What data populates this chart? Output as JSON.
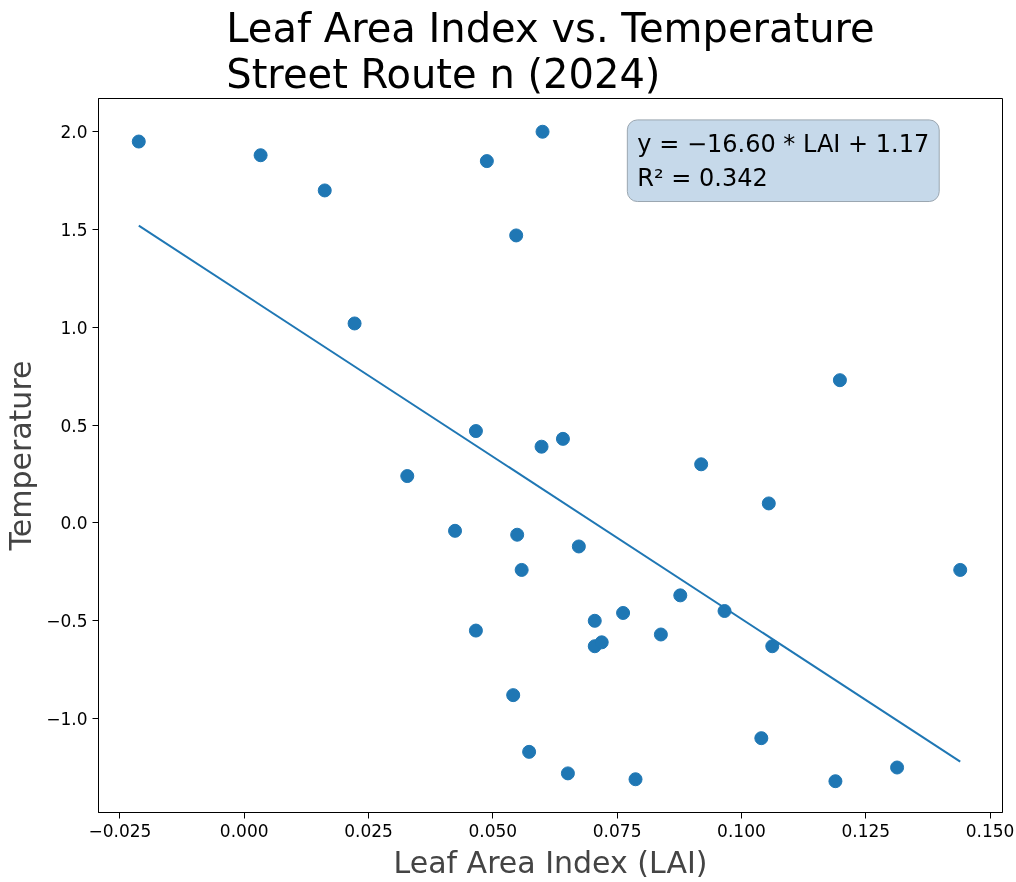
{
  "chart_data": {
    "type": "scatter",
    "title": "Leaf Area Index vs. Temperature\nStreet Route n (2024)",
    "xlabel": "Leaf Area Index (LAI)",
    "ylabel": "Temperature",
    "xlim": [
      -0.0293,
      0.1525
    ],
    "ylim": [
      -1.48,
      2.17
    ],
    "xticks": [
      {
        "value": -0.025,
        "label": "−0.025"
      },
      {
        "value": 0,
        "label": "0.000"
      },
      {
        "value": 0.025,
        "label": "0.025"
      },
      {
        "value": 0.05,
        "label": "0.050"
      },
      {
        "value": 0.075,
        "label": "0.075"
      },
      {
        "value": 0.1,
        "label": "0.100"
      },
      {
        "value": 0.125,
        "label": "0.125"
      },
      {
        "value": 0.15,
        "label": "0.150"
      }
    ],
    "yticks": [
      {
        "value": -1,
        "label": "−1.0"
      },
      {
        "value": -0.5,
        "label": "−0.5"
      },
      {
        "value": 0,
        "label": "0.0"
      },
      {
        "value": 0.5,
        "label": "0.5"
      },
      {
        "value": 1,
        "label": "1.0"
      },
      {
        "value": 1.5,
        "label": "1.5"
      },
      {
        "value": 2,
        "label": "2.0"
      }
    ],
    "grid": false,
    "annotations": [
      "y = −16.60 * LAI + 1.17",
      "R² = 0.342"
    ],
    "series": [
      {
        "color": "#1f77b4",
        "marker": "circle",
        "x": [
          -0.0212,
          0.0033,
          0.0162,
          0.06,
          0.0488,
          0.0547,
          0.0222,
          0.0466,
          0.0598,
          0.0641,
          0.0328,
          0.0424,
          0.0549,
          0.0673,
          0.0558,
          0.0466,
          0.0705,
          0.0762,
          0.0705,
          0.0719,
          0.0877,
          0.0838,
          0.0966,
          0.0919,
          0.1055,
          0.1198,
          0.1062,
          0.144,
          0.0541,
          0.0573,
          0.0651,
          0.0787,
          0.104,
          0.1189,
          0.1313
        ],
        "values": [
          1.95,
          1.88,
          1.7,
          2.0,
          1.85,
          1.47,
          1.02,
          0.47,
          0.39,
          0.43,
          0.24,
          -0.04,
          -0.06,
          -0.12,
          -0.24,
          -0.55,
          -0.5,
          -0.46,
          -0.63,
          -0.61,
          -0.37,
          -0.57,
          -0.45,
          0.3,
          0.1,
          0.73,
          -0.63,
          -0.24,
          -0.88,
          -1.17,
          -1.28,
          -1.31,
          -1.1,
          -1.32,
          -1.25
        ]
      },
      {
        "type": "line",
        "marker": "none",
        "color": "#1f77b4",
        "x": [
          -0.0212,
          0.144
        ],
        "values": [
          1.52,
          -1.22
        ]
      }
    ]
  }
}
